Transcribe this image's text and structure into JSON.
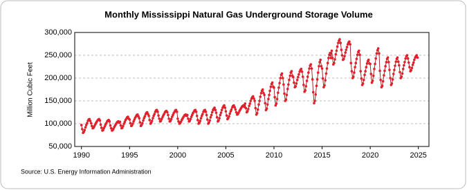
{
  "chart_data": {
    "type": "line",
    "title": "Monthly Mississippi Natural Gas Underground Storage Volume",
    "y_label": "Million Cubic Feet",
    "source": "Source: U.S. Energy Information Administration",
    "xlim": [
      1989.3,
      2026.1
    ],
    "xticks": [
      1990,
      1995,
      2000,
      2005,
      2010,
      2015,
      2020,
      2025
    ],
    "ylim": [
      50000,
      300000
    ],
    "yticks": [
      {
        "value": 50000,
        "label": "50,000"
      },
      {
        "value": 100000,
        "label": "100,000"
      },
      {
        "value": 150000,
        "label": "150,000"
      },
      {
        "value": 200000,
        "label": "200,000"
      },
      {
        "value": 250000,
        "label": "250,000"
      },
      {
        "value": 300000,
        "label": "300,000"
      }
    ],
    "grid": true,
    "x": [
      1990,
      1990.08,
      1990.17,
      1990.25,
      1990.33,
      1990.42,
      1990.5,
      1990.58,
      1990.67,
      1990.75,
      1990.83,
      1990.92,
      1991,
      1991.08,
      1991.17,
      1991.25,
      1991.33,
      1991.42,
      1991.5,
      1991.58,
      1991.67,
      1991.75,
      1991.83,
      1991.92,
      1992,
      1992.08,
      1992.17,
      1992.25,
      1992.33,
      1992.42,
      1992.5,
      1992.58,
      1992.67,
      1992.75,
      1992.83,
      1992.92,
      1993,
      1993.08,
      1993.17,
      1993.25,
      1993.33,
      1993.42,
      1993.5,
      1993.58,
      1993.67,
      1993.75,
      1993.83,
      1993.92,
      1994,
      1994.08,
      1994.17,
      1994.25,
      1994.33,
      1994.42,
      1994.5,
      1994.58,
      1994.67,
      1994.75,
      1994.83,
      1994.92,
      1995,
      1995.08,
      1995.17,
      1995.25,
      1995.33,
      1995.42,
      1995.5,
      1995.58,
      1995.67,
      1995.75,
      1995.83,
      1995.92,
      1996,
      1996.08,
      1996.17,
      1996.25,
      1996.33,
      1996.42,
      1996.5,
      1996.58,
      1996.67,
      1996.75,
      1996.83,
      1996.92,
      1997,
      1997.08,
      1997.17,
      1997.25,
      1997.33,
      1997.42,
      1997.5,
      1997.58,
      1997.67,
      1997.75,
      1997.83,
      1997.92,
      1998,
      1998.08,
      1998.17,
      1998.25,
      1998.33,
      1998.42,
      1998.5,
      1998.58,
      1998.67,
      1998.75,
      1998.83,
      1998.92,
      1999,
      1999.08,
      1999.17,
      1999.25,
      1999.33,
      1999.42,
      1999.5,
      1999.58,
      1999.67,
      1999.75,
      1999.83,
      1999.92,
      2000,
      2000.08,
      2000.17,
      2000.25,
      2000.33,
      2000.42,
      2000.5,
      2000.58,
      2000.67,
      2000.75,
      2000.83,
      2000.92,
      2001,
      2001.08,
      2001.17,
      2001.25,
      2001.33,
      2001.42,
      2001.5,
      2001.58,
      2001.67,
      2001.75,
      2001.83,
      2001.92,
      2002,
      2002.08,
      2002.17,
      2002.25,
      2002.33,
      2002.42,
      2002.5,
      2002.58,
      2002.67,
      2002.75,
      2002.83,
      2002.92,
      2003,
      2003.08,
      2003.17,
      2003.25,
      2003.33,
      2003.42,
      2003.5,
      2003.58,
      2003.67,
      2003.75,
      2003.83,
      2003.92,
      2004,
      2004.08,
      2004.17,
      2004.25,
      2004.33,
      2004.42,
      2004.5,
      2004.58,
      2004.67,
      2004.75,
      2004.83,
      2004.92,
      2005,
      2005.08,
      2005.17,
      2005.25,
      2005.33,
      2005.42,
      2005.5,
      2005.58,
      2005.67,
      2005.75,
      2005.83,
      2005.92,
      2006,
      2006.08,
      2006.17,
      2006.25,
      2006.33,
      2006.42,
      2006.5,
      2006.58,
      2006.67,
      2006.75,
      2006.83,
      2006.92,
      2007,
      2007.08,
      2007.17,
      2007.25,
      2007.33,
      2007.42,
      2007.5,
      2007.58,
      2007.67,
      2007.75,
      2007.83,
      2007.92,
      2008,
      2008.08,
      2008.17,
      2008.25,
      2008.33,
      2008.42,
      2008.5,
      2008.58,
      2008.67,
      2008.75,
      2008.83,
      2008.92,
      2009,
      2009.08,
      2009.17,
      2009.25,
      2009.33,
      2009.42,
      2009.5,
      2009.58,
      2009.67,
      2009.75,
      2009.83,
      2009.92,
      2010,
      2010.08,
      2010.17,
      2010.25,
      2010.33,
      2010.42,
      2010.5,
      2010.58,
      2010.67,
      2010.75,
      2010.83,
      2010.92,
      2011,
      2011.08,
      2011.17,
      2011.25,
      2011.33,
      2011.42,
      2011.5,
      2011.58,
      2011.67,
      2011.75,
      2011.83,
      2011.92,
      2012,
      2012.08,
      2012.17,
      2012.25,
      2012.33,
      2012.42,
      2012.5,
      2012.58,
      2012.67,
      2012.75,
      2012.83,
      2012.92,
      2013,
      2013.08,
      2013.17,
      2013.25,
      2013.33,
      2013.42,
      2013.5,
      2013.58,
      2013.67,
      2013.75,
      2013.83,
      2013.92,
      2014,
      2014.08,
      2014.17,
      2014.25,
      2014.33,
      2014.42,
      2014.5,
      2014.58,
      2014.67,
      2014.75,
      2014.83,
      2014.92,
      2015,
      2015.08,
      2015.17,
      2015.25,
      2015.33,
      2015.42,
      2015.5,
      2015.58,
      2015.67,
      2015.75,
      2015.83,
      2015.92,
      2016,
      2016.08,
      2016.17,
      2016.25,
      2016.33,
      2016.42,
      2016.5,
      2016.58,
      2016.67,
      2016.75,
      2016.83,
      2016.92,
      2017,
      2017.08,
      2017.17,
      2017.25,
      2017.33,
      2017.42,
      2017.5,
      2017.58,
      2017.67,
      2017.75,
      2017.83,
      2017.92,
      2018,
      2018.08,
      2018.17,
      2018.25,
      2018.33,
      2018.42,
      2018.5,
      2018.58,
      2018.67,
      2018.75,
      2018.83,
      2018.92,
      2019,
      2019.08,
      2019.17,
      2019.25,
      2019.33,
      2019.42,
      2019.5,
      2019.58,
      2019.67,
      2019.75,
      2019.83,
      2019.92,
      2020,
      2020.08,
      2020.17,
      2020.25,
      2020.33,
      2020.42,
      2020.5,
      2020.58,
      2020.67,
      2020.75,
      2020.83,
      2020.92,
      2021,
      2021.08,
      2021.17,
      2021.25,
      2021.33,
      2021.42,
      2021.5,
      2021.58,
      2021.67,
      2021.75,
      2021.83,
      2021.92,
      2022,
      2022.08,
      2022.17,
      2022.25,
      2022.33,
      2022.42,
      2022.5,
      2022.58,
      2022.67,
      2022.75,
      2022.83,
      2022.92,
      2023,
      2023.08,
      2023.17,
      2023.25,
      2023.33,
      2023.42,
      2023.5,
      2023.58,
      2023.67,
      2023.75,
      2023.83,
      2023.92,
      2024,
      2024.08,
      2024.17,
      2024.25,
      2024.33,
      2024.42,
      2024.5,
      2024.58,
      2024.67,
      2024.75,
      2024.83,
      2024.92
    ],
    "series": [
      {
        "color": "#a0282d",
        "marker_color": "#e0202a",
        "values": [
          97000,
          88000,
          80000,
          82000,
          86000,
          92000,
          97000,
          101000,
          106000,
          109000,
          110000,
          106000,
          101000,
          95000,
          90000,
          91000,
          94000,
          98000,
          101000,
          104000,
          107000,
          109000,
          110000,
          107000,
          98000,
          91000,
          85000,
          86000,
          90000,
          94000,
          98000,
          101000,
          105000,
          107000,
          108000,
          105000,
          96000,
          90000,
          85000,
          86000,
          89000,
          93000,
          96000,
          99000,
          102000,
          104000,
          105000,
          102000,
          104000,
          96000,
          90000,
          91000,
          95000,
          100000,
          104000,
          108000,
          111000,
          114000,
          115000,
          111000,
          109000,
          101000,
          95000,
          96000,
          100000,
          105000,
          109000,
          113000,
          116000,
          119000,
          120000,
          116000,
          112000,
          103000,
          95000,
          97000,
          101000,
          107000,
          112000,
          116000,
          121000,
          124000,
          125000,
          121000,
          117000,
          108000,
          100000,
          102000,
          106000,
          112000,
          117000,
          121000,
          126000,
          129000,
          130000,
          126000,
          118000,
          111000,
          105000,
          106000,
          110000,
          114000,
          118000,
          121000,
          125000,
          127000,
          128000,
          125000,
          119000,
          111000,
          105000,
          106000,
          110000,
          115000,
          119000,
          123000,
          126000,
          129000,
          130000,
          126000,
          111000,
          105000,
          100000,
          101000,
          104000,
          108000,
          111000,
          114000,
          117000,
          119000,
          120000,
          117000,
          119000,
          111000,
          105000,
          106000,
          110000,
          115000,
          119000,
          123000,
          126000,
          129000,
          130000,
          126000,
          117000,
          108000,
          100000,
          102000,
          106000,
          112000,
          117000,
          121000,
          126000,
          129000,
          130000,
          126000,
          119000,
          109000,
          100000,
          102000,
          107000,
          114000,
          119000,
          125000,
          130000,
          133000,
          135000,
          130000,
          124000,
          114000,
          105000,
          107000,
          112000,
          119000,
          124000,
          130000,
          135000,
          138000,
          140000,
          135000,
          127000,
          118000,
          110000,
          112000,
          116000,
          122000,
          127000,
          131000,
          136000,
          139000,
          140000,
          136000,
          131000,
          125000,
          120000,
          121000,
          124000,
          128000,
          131000,
          134000,
          137000,
          139000,
          140000,
          137000,
          144000,
          134000,
          125000,
          127000,
          132000,
          139000,
          144000,
          150000,
          155000,
          158000,
          160000,
          155000,
          150000,
          134000,
          120000,
          123000,
          131000,
          142000,
          150000,
          159000,
          167000,
          172000,
          175000,
          167000,
          163000,
          145000,
          130000,
          133000,
          142000,
          154000,
          163000,
          172000,
          181000,
          187000,
          190000,
          181000,
          179000,
          158000,
          140000,
          144000,
          154000,
          168000,
          179000,
          189000,
          200000,
          207000,
          210000,
          200000,
          186000,
          166000,
          150000,
          153000,
          163000,
          176000,
          186000,
          196000,
          205000,
          212000,
          215000,
          205000,
          202000,
          190000,
          180000,
          182000,
          188000,
          196000,
          202000,
          208000,
          214000,
          218000,
          220000,
          214000,
          203000,
          185000,
          170000,
          173000,
          182000,
          194000,
          203000,
          212000,
          221000,
          227000,
          230000,
          221000,
          197000,
          169000,
          145000,
          150000,
          164000,
          183000,
          197000,
          212000,
          226000,
          235000,
          240000,
          226000,
          221000,
          199000,
          180000,
          184000,
          195000,
          210000,
          221000,
          233000,
          244000,
          251000,
          255000,
          244000,
          260000,
          244000,
          230000,
          233000,
          241000,
          252000,
          260000,
          269000,
          277000,
          282000,
          285000,
          277000,
          262000,
          250000,
          240000,
          242000,
          248000,
          256000,
          262000,
          268000,
          274000,
          278000,
          280000,
          274000,
          233000,
          215000,
          200000,
          203000,
          212000,
          224000,
          233000,
          242000,
          251000,
          257000,
          260000,
          251000,
          215000,
          199000,
          185000,
          188000,
          196000,
          207000,
          215000,
          224000,
          232000,
          237000,
          240000,
          232000,
          231000,
          209000,
          190000,
          194000,
          205000,
          220000,
          231000,
          243000,
          254000,
          261000,
          265000,
          254000,
          216000,
          196000,
          180000,
          183000,
          193000,
          206000,
          216000,
          226000,
          235000,
          242000,
          245000,
          235000,
          218000,
          200000,
          185000,
          188000,
          197000,
          209000,
          218000,
          227000,
          236000,
          242000,
          245000,
          236000,
          228000,
          213000,
          200000,
          203000,
          210000,
          220000,
          228000,
          235000,
          243000,
          248000,
          250000,
          243000,
          234000,
          224000,
          215000,
          217000,
          222000,
          229000,
          234000,
          240000,
          245000,
          248000,
          250000,
          245000
        ]
      }
    ]
  }
}
